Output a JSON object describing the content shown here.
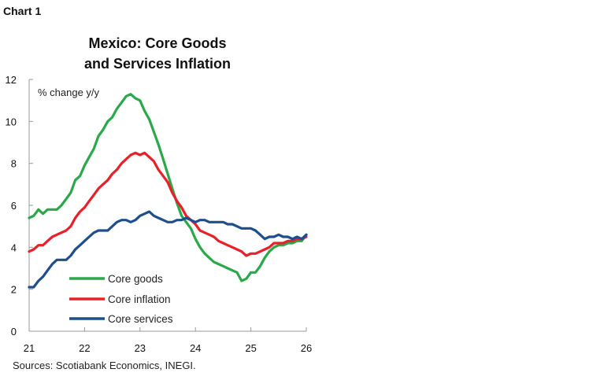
{
  "header": {
    "chart_label": "Chart 1",
    "title_line1": "Mexico: Core Goods",
    "title_line2": "and Services Inflation"
  },
  "footer": {
    "source": "Sources: Scotiabank Economics, INEGI."
  },
  "colors": {
    "core_goods": "#2aa84a",
    "core_inflation": "#e8202a",
    "core_services": "#1f4e8c",
    "axis": "#999999"
  },
  "chart_data": {
    "type": "line",
    "title": "Mexico: Core Goods and Services Inflation",
    "ylabel": "% change y/y",
    "xlabel": "",
    "xlim": [
      21,
      26
    ],
    "ylim": [
      0,
      12
    ],
    "x_ticks": [
      "21",
      "22",
      "23",
      "24",
      "25",
      "26"
    ],
    "y_ticks": [
      "0",
      "2",
      "4",
      "6",
      "8",
      "10",
      "12"
    ],
    "grid": false,
    "legend_position": "bottom-left",
    "x": [
      21.0,
      21.083,
      21.167,
      21.25,
      21.333,
      21.417,
      21.5,
      21.583,
      21.667,
      21.75,
      21.833,
      21.917,
      22.0,
      22.083,
      22.167,
      22.25,
      22.333,
      22.417,
      22.5,
      22.583,
      22.667,
      22.75,
      22.833,
      22.917,
      23.0,
      23.083,
      23.167,
      23.25,
      23.333,
      23.417,
      23.5,
      23.583,
      23.667,
      23.75,
      23.833,
      23.917,
      24.0,
      24.083,
      24.167,
      24.25,
      24.333,
      24.417,
      24.5,
      24.583,
      24.667,
      24.75,
      24.833,
      24.917,
      25.0,
      25.083,
      25.167,
      25.25,
      25.333,
      25.417,
      25.5,
      25.583,
      25.667,
      25.75,
      25.833,
      25.917,
      26.0
    ],
    "series": [
      {
        "name": "Core goods",
        "color": "#2aa84a",
        "values": [
          5.4,
          5.5,
          5.8,
          5.6,
          5.8,
          5.8,
          5.8,
          6.0,
          6.3,
          6.6,
          7.2,
          7.4,
          7.9,
          8.3,
          8.7,
          9.3,
          9.6,
          10.0,
          10.2,
          10.6,
          10.9,
          11.2,
          11.3,
          11.1,
          11.0,
          10.5,
          10.1,
          9.5,
          8.9,
          8.2,
          7.5,
          6.8,
          6.1,
          5.5,
          5.2,
          4.9,
          4.4,
          4.0,
          3.7,
          3.5,
          3.3,
          3.2,
          3.1,
          3.0,
          2.9,
          2.8,
          2.4,
          2.5,
          2.8,
          2.8,
          3.1,
          3.5,
          3.8,
          4.0,
          4.1,
          4.1,
          4.2,
          4.2,
          4.3,
          4.3,
          4.6
        ]
      },
      {
        "name": "Core inflation",
        "color": "#e8202a",
        "values": [
          3.8,
          3.9,
          4.1,
          4.1,
          4.3,
          4.5,
          4.6,
          4.7,
          4.8,
          5.0,
          5.4,
          5.7,
          5.9,
          6.2,
          6.5,
          6.8,
          7.0,
          7.2,
          7.5,
          7.7,
          8.0,
          8.2,
          8.4,
          8.5,
          8.4,
          8.5,
          8.3,
          8.1,
          7.7,
          7.4,
          7.1,
          6.6,
          6.2,
          5.9,
          5.5,
          5.3,
          5.1,
          4.8,
          4.7,
          4.6,
          4.5,
          4.3,
          4.2,
          4.1,
          4.0,
          3.9,
          3.8,
          3.6,
          3.7,
          3.7,
          3.8,
          3.9,
          4.0,
          4.2,
          4.2,
          4.2,
          4.3,
          4.3,
          4.4,
          4.4,
          4.5
        ]
      },
      {
        "name": "Core services",
        "color": "#1f4e8c",
        "values": [
          2.1,
          2.1,
          2.4,
          2.6,
          2.9,
          3.2,
          3.4,
          3.4,
          3.4,
          3.6,
          3.9,
          4.1,
          4.3,
          4.5,
          4.7,
          4.8,
          4.8,
          4.8,
          5.0,
          5.2,
          5.3,
          5.3,
          5.2,
          5.3,
          5.5,
          5.6,
          5.7,
          5.5,
          5.4,
          5.3,
          5.2,
          5.2,
          5.3,
          5.3,
          5.4,
          5.3,
          5.2,
          5.3,
          5.3,
          5.2,
          5.2,
          5.2,
          5.2,
          5.1,
          5.1,
          5.0,
          4.9,
          4.9,
          4.9,
          4.8,
          4.6,
          4.4,
          4.5,
          4.5,
          4.6,
          4.5,
          4.5,
          4.4,
          4.5,
          4.4,
          4.6
        ]
      }
    ]
  }
}
